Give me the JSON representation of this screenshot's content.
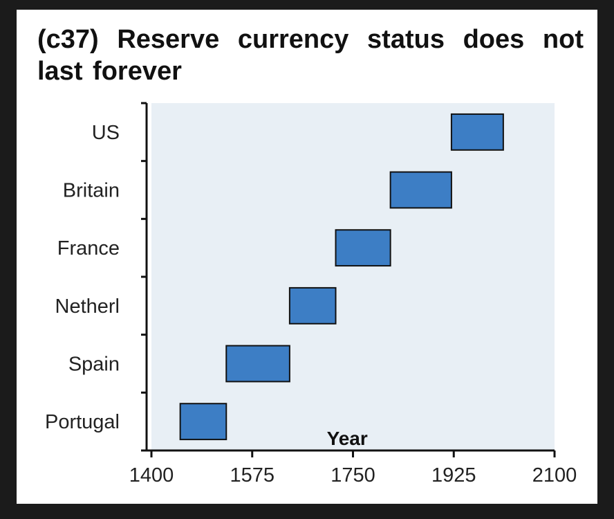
{
  "chart_data": {
    "type": "bar",
    "orientation": "horizontal-range",
    "title": "(c37) Reserve currency status does not last forever",
    "xlabel": "Year",
    "ylabel": "",
    "xlim": [
      1400,
      2100
    ],
    "xticks": [
      "1400",
      "1575",
      "1750",
      "1925",
      "2100"
    ],
    "categories": [
      "US",
      "Britain",
      "France",
      "Netherl",
      "Spain",
      "Portugal"
    ],
    "series": [
      {
        "ranges": [
          [
            1921,
            2011
          ],
          [
            1815,
            1921
          ],
          [
            1720,
            1815
          ],
          [
            1640,
            1720
          ],
          [
            1530,
            1640
          ],
          [
            1450,
            1530
          ]
        ]
      }
    ],
    "grid": false,
    "legend": "none",
    "colors": {
      "bar_fill": "#3d7ec5",
      "bar_stroke": "#111111",
      "plot_background": "#e8eff5",
      "axis": "#111111"
    }
  }
}
